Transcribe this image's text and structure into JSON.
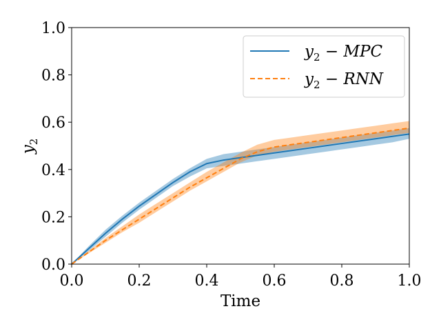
{
  "chart_data": {
    "type": "line",
    "title": "",
    "xlabel": "Time",
    "ylabel": "y",
    "ylabel_subscript": "2",
    "xlim": [
      0.0,
      1.0
    ],
    "ylim": [
      0.0,
      1.0
    ],
    "xticks": [
      0.0,
      0.2,
      0.4,
      0.6,
      0.8,
      1.0
    ],
    "yticks": [
      0.0,
      0.2,
      0.4,
      0.6,
      0.8,
      1.0
    ],
    "xtick_labels": [
      "0.0",
      "0.2",
      "0.4",
      "0.6",
      "0.8",
      "1.0"
    ],
    "ytick_labels": [
      "0.0",
      "0.2",
      "0.4",
      "0.6",
      "0.8",
      "1.0"
    ],
    "grid": false,
    "legend_position": "top-right",
    "x": [
      0.0,
      0.05,
      0.1,
      0.15,
      0.2,
      0.25,
      0.3,
      0.35,
      0.4,
      0.45,
      0.5,
      0.55,
      0.6,
      0.65,
      0.7,
      0.75,
      0.8,
      0.85,
      0.9,
      0.95,
      1.0
    ],
    "series": [
      {
        "name": "y2 - MPC",
        "legend_main": "y",
        "legend_sub": "2",
        "legend_rest": " − MPC",
        "color": "#1f77b4",
        "fill_color": "#1f77b4",
        "dash": "solid",
        "values": [
          0.0,
          0.065,
          0.13,
          0.19,
          0.245,
          0.295,
          0.345,
          0.39,
          0.425,
          0.44,
          0.45,
          0.46,
          0.47,
          0.48,
          0.49,
          0.5,
          0.51,
          0.52,
          0.53,
          0.54,
          0.55
        ],
        "lower": [
          0.0,
          0.055,
          0.115,
          0.175,
          0.23,
          0.28,
          0.33,
          0.37,
          0.405,
          0.415,
          0.425,
          0.435,
          0.445,
          0.455,
          0.465,
          0.475,
          0.485,
          0.495,
          0.505,
          0.515,
          0.53
        ],
        "upper": [
          0.0,
          0.075,
          0.145,
          0.205,
          0.26,
          0.31,
          0.36,
          0.405,
          0.445,
          0.465,
          0.475,
          0.485,
          0.495,
          0.505,
          0.515,
          0.525,
          0.535,
          0.545,
          0.555,
          0.565,
          0.575
        ]
      },
      {
        "name": "y2 - RNN",
        "legend_main": "y",
        "legend_sub": "2",
        "legend_rest": " − RNN",
        "color": "#ff7f0e",
        "fill_color": "#ff7f0e",
        "dash": "dashed",
        "values": [
          0.0,
          0.05,
          0.1,
          0.145,
          0.19,
          0.235,
          0.28,
          0.325,
          0.365,
          0.405,
          0.445,
          0.475,
          0.495,
          0.505,
          0.515,
          0.525,
          0.535,
          0.545,
          0.555,
          0.565,
          0.575
        ],
        "lower": [
          0.0,
          0.045,
          0.09,
          0.135,
          0.175,
          0.22,
          0.265,
          0.31,
          0.35,
          0.39,
          0.43,
          0.46,
          0.475,
          0.485,
          0.495,
          0.505,
          0.515,
          0.525,
          0.535,
          0.545,
          0.555
        ],
        "upper": [
          0.0,
          0.055,
          0.11,
          0.16,
          0.21,
          0.255,
          0.3,
          0.345,
          0.39,
          0.43,
          0.47,
          0.505,
          0.525,
          0.535,
          0.545,
          0.555,
          0.565,
          0.575,
          0.585,
          0.595,
          0.605
        ]
      }
    ]
  }
}
